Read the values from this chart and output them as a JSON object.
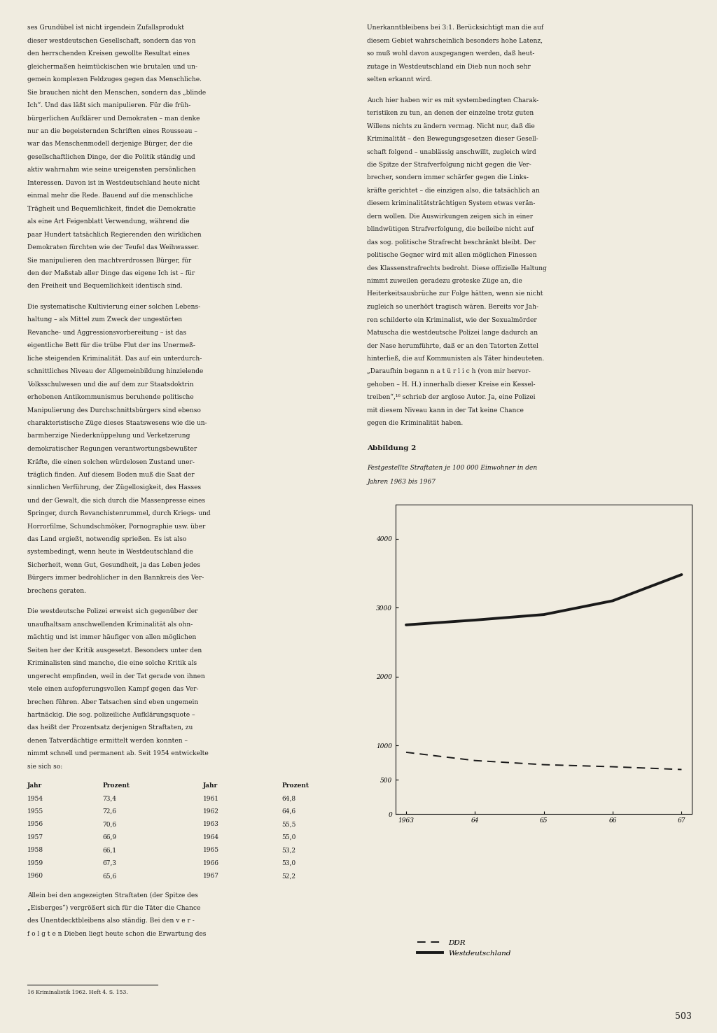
{
  "page_bg": "#f0ece0",
  "text_color": "#1a1a1a",
  "chart_title_bold": "Abbildung 2",
  "chart_subtitle": "Festgestellte Straftaten je 100 000 Einwohner in den\nJahren 1963 bis 1967",
  "x_years": [
    1963,
    1964,
    1965,
    1966,
    1967
  ],
  "x_labels": [
    "1963",
    "64",
    "65",
    "66",
    "67"
  ],
  "ddr_values": [
    900,
    780,
    720,
    690,
    650
  ],
  "west_values": [
    2750,
    2820,
    2900,
    3100,
    3480
  ],
  "y_ticks": [
    0,
    500,
    1000,
    2000,
    3000,
    4000
  ],
  "y_tick_labels": [
    "0",
    "500",
    "1000",
    "2000",
    "3000",
    "4000"
  ],
  "legend_ddr": "DDR",
  "legend_west": "Westdeutschland",
  "footnote": "16 Kriminalistik 1962. Heft 4. S. 153.",
  "page_number": "503",
  "left_col_text": [
    "ses Grundübel ist nicht irgendein Zufallsprodukt",
    "dieser westdeutschen Gesellschaft, sondern das von",
    "den herrschenden Kreisen gewollte Resultat eines",
    "gleichermaßen heimtückischen wie brutalen und un-",
    "gemein komplexen Feldzuges gegen das Menschliche.",
    "Sie brauchen nicht den Menschen, sondern das „blinde",
    "Ich“. Und das läßt sich manipulieren. Für die früh-",
    "bürgerlichen Aufklärer und Demokraten – man denke",
    "nur an die begeisternden Schriften eines Rousseau –",
    "war das Menschenmodell derjenige Bürger, der die",
    "gesellschaftlichen Dinge, der die Politik ständig und",
    "aktiv wahrnahm wie seine ureigensten persönlichen",
    "Interessen. Davon ist in Westdeutschland heute nicht",
    "einmal mehr die Rede. Bauend auf die menschliche",
    "Trägheit und Bequemlichkeit, findet die Demokratie",
    "als eine Art Feigenblatt Verwendung, während die",
    "paar Hundert tatsächlich Regierenden den wirklichen",
    "Demokraten fürchten wie der Teufel das Weihwasser.",
    "Sie manipulieren den machtverdrossen Bürger, für",
    "den der Maßstab aller Dinge das eigene Ich ist – für",
    "den Freiheit und Bequemlichkeit identisch sind.",
    "",
    "Die systematische Kultivierung einer solchen Lebens-",
    "haltung – als Mittel zum Zweck der ungestörten",
    "Revanche- und Aggressionsvorbereitung – ist das",
    "eigentliche Bett für die trübe Flut der ins Unermeß-",
    "liche steigenden Kriminalität. Das auf ein unterdurch-",
    "schnittliches Niveau der Allgemeinbildung hinzielende",
    "Volksschulwesen und die auf dem zur Staatsdoktrin",
    "erhobenen Antikommunismus beruhende politische",
    "Manipulierung des Durchschnittsbürgers sind ebenso",
    "charakteristische Züge dieses Staatswesens wie die un-",
    "barmherzige Niederknüppelung und Verketzerung",
    "demokratischer Regungen verantwortungsbewußter",
    "Kräfte, die einen solchen würdelosen Zustand uner-",
    "träglich finden. Auf diesem Boden muß die Saat der",
    "sinnlichen Verführung, der Zügellosigkeit, des Hasses",
    "und der Gewalt, die sich durch die Massenpresse eines",
    "Springer, durch Revanchistenrummel, durch Kriegs- und",
    "Horrorfilme, Schundschmöker, Pornographie usw. über",
    "das Land ergießt, notwendig sprießen. Es ist also",
    "systembedingt, wenn heute in Westdeutschland die",
    "Sicherheit, wenn Gut, Gesundheit, ja das Leben jedes",
    "Bürgers immer bedrohlicher in den Bannkreis des Ver-",
    "brechens geraten.",
    "",
    "Die westdeutsche Polizei erweist sich gegenüber der",
    "unaufhaltsam anschwellenden Kriminalität als ohn-",
    "mächtig und ist immer häufiger von allen möglichen",
    "Seiten her der Kritik ausgesetzt. Besonders unter den",
    "Kriminalisten sind manche, die eine solche Kritik als",
    "ungerecht empfinden, weil in der Tat gerade von ihnen",
    "viele einen aufopferungsvollen Kampf gegen das Ver-",
    "brechen führen. Aber Tatsachen sind eben ungemein",
    "hartnäckig. Die sog. polizeiliche Aufklärungsquote –",
    "das heißt der Prozentsatz derjenigen Straftaten, zu",
    "denen Tatverdächtige ermittelt werden konnten –",
    "nimmt schnell und permanent ab. Seit 1954 entwickelte",
    "sie sich so:"
  ],
  "table_years_left": [
    "1954",
    "1955",
    "1956",
    "1957",
    "1958",
    "1959",
    "1960"
  ],
  "table_pct_left": [
    "73,4",
    "72,6",
    "70,6",
    "66,9",
    "66,1",
    "67,3",
    "65,6"
  ],
  "table_years_right": [
    "1961",
    "1962",
    "1963",
    "1964",
    "1965",
    "1966",
    "1967"
  ],
  "table_pct_right": [
    "64,8",
    "64,6",
    "55,5",
    "55,0",
    "53,2",
    "53,0",
    "52,2"
  ],
  "table_header": [
    "Jahr",
    "Prozent",
    "Jahr",
    "Prozent"
  ],
  "right_col_top_text": [
    "Unerkanntbleibens bei 3:1. Berücksichtigt man die auf",
    "diesem Gebiet wahrscheinlich besonders hohe Latenz,",
    "so muß wohl davon ausgegangen werden, daß heut-",
    "zutage in Westdeutschland ein Dieb nun noch sehr",
    "selten erkannt wird.",
    "",
    "Auch hier haben wir es mit systembedingten Charak-",
    "teristiken zu tun, an denen der einzelne trotz guten",
    "Willens nichts zu ändern vermag. Nicht nur, daß die",
    "Kriminalität – den Bewegungsgesetzen dieser Gesell-",
    "schaft folgend – unablässig anschwillt, zugleich wird",
    "die Spitze der Strafverfolgung nicht gegen die Ver-",
    "brecher, sondern immer schärfer gegen die Links-",
    "kräfte gerichtet – die einzigen also, die tatsächlich an",
    "diesem kriminalitätsträchtigen System etwas verän-",
    "dern wollen. Die Auswirkungen zeigen sich in einer",
    "blindwütigen Strafverfolgung, die beileibe nicht auf",
    "das sog. politische Strafrecht beschränkt bleibt. Der",
    "politische Gegner wird mit allen möglichen Finessen",
    "des Klassenstrafrechts bedroht. Diese offizielle Haltung",
    "nimmt zuweilen geradezu groteske Züge an, die",
    "Heiterkeitsausbrüche zur Folge hätten, wenn sie nicht",
    "zugleich so unerhört tragisch wären. Bereits vor Jah-",
    "ren schilderte ein Kriminalist, wie der Sexualmörder",
    "Matuscha die westdeutsche Polizei lange dadurch an",
    "der Nase herumführte, daß er an den Tatorten Zettel",
    "hinterließ, die auf Kommunisten als Täter hindeuteten.",
    "„Daraufhin begann n a t ü r l i c h (von mir hervor-",
    "gehoben – H. H.) innerhalb dieser Kreise ein Kessel-",
    "treiben“,¹⁶ schrieb der arglose Autor. Ja, eine Polizei",
    "mit diesem Niveau kann in der Tat keine Chance",
    "gegen die Kriminalität haben."
  ],
  "right_col_bottom_text": [
    "Allein bei den angezeigten Straftaten (der Spitze des",
    "„Eisberges“) vergrößert sich für die Täter die Chance",
    "des Unentdecktbleibens also ständig. Bei den v e r -",
    "f o l g t e n Dieben liegt heute schon die Erwartung des"
  ]
}
